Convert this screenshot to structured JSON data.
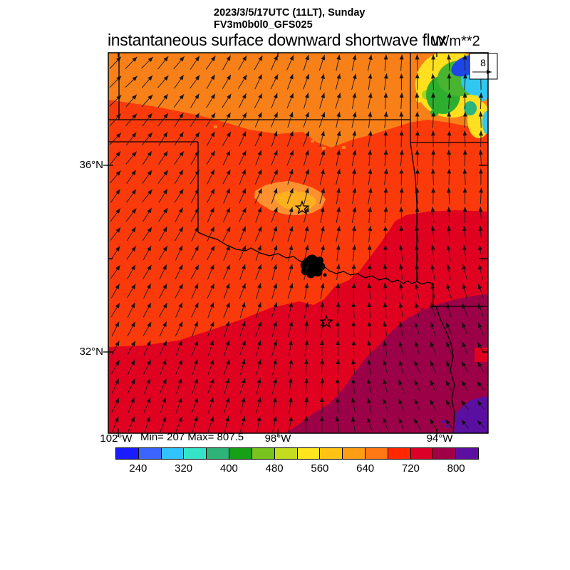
{
  "header": {
    "datetime": "2023/3/5/17UTC (11LT), Sunday",
    "model": "FV3m0b0l0_GFS025"
  },
  "title": {
    "text": "instantaneous surface downward shortwave flux",
    "units": "W/m**2"
  },
  "stats": {
    "minmax": "Min= 207 Max= 807.5"
  },
  "axes": {
    "lat": [
      "36°N",
      "32°N"
    ],
    "lon": [
      "102°W",
      "98°W",
      "94°W"
    ]
  },
  "wind_ref": {
    "label": "8"
  },
  "colorbar": {
    "labels": [
      "240",
      "320",
      "400",
      "480",
      "560",
      "640",
      "720",
      "800"
    ],
    "colors": [
      "#1b1bff",
      "#3c64ff",
      "#30c3ff",
      "#35e3c8",
      "#2eb478",
      "#16a016",
      "#78c31e",
      "#c3dc1e",
      "#ffe51e",
      "#ffc314",
      "#ff9e14",
      "#ff7814",
      "#ff2800",
      "#dc0028",
      "#a00046",
      "#5c0fa0"
    ]
  },
  "map_colors": {
    "orange_north": "#f88019",
    "redorange_mid": "#fb3a0c",
    "crimson_south": "#e00020",
    "magenta_se": "#9c0046",
    "purple_corner": "#5b0fa0",
    "patch_outer": "#fd9130",
    "patch_inner": "#ffb01e",
    "cloud_yellow": "#ffdf1e",
    "cloud_yellowgreen": "#a8d41e",
    "cloud_green": "#2eae2e",
    "cloud_green2": "#49b430",
    "cloud_teal": "#2ab47e",
    "cloud_cyan": "#30c8f0",
    "cloud_blue": "#1e46e6",
    "arrow": "#1c1c1c",
    "border": "#000000"
  },
  "chart_data": {
    "type": "heatmap",
    "title": "instantaneous surface downward shortwave flux",
    "units": "W/m**2",
    "valid_time": "2023/3/5/17UTC (11LT), Sunday",
    "model": "FV3m0b0l0_GFS025",
    "stat_min": 207,
    "stat_max": 807.5,
    "colorbar": {
      "boundaries": [
        200,
        240,
        280,
        320,
        360,
        400,
        440,
        480,
        520,
        560,
        600,
        640,
        680,
        720,
        760,
        800,
        840
      ],
      "tick_labels": [
        240,
        320,
        400,
        480,
        560,
        640,
        720,
        800
      ],
      "colors": [
        "#1b1bff",
        "#3c64ff",
        "#30c3ff",
        "#35e3c8",
        "#2eb478",
        "#16a016",
        "#78c31e",
        "#c3dc1e",
        "#ffe51e",
        "#ffc314",
        "#ff9e14",
        "#ff7814",
        "#ff2800",
        "#dc0028",
        "#a00046",
        "#5c0fa0"
      ]
    },
    "x_axis": {
      "label_type": "longitude",
      "tick_labels": [
        "102°W",
        "98°W",
        "94°W"
      ],
      "approx_range_deg_west": [
        102.3,
        92.7
      ]
    },
    "y_axis": {
      "label_type": "latitude",
      "tick_labels": [
        "36°N",
        "32°N"
      ],
      "approx_range_deg_north": [
        30.3,
        38.4
      ]
    },
    "wind_vectors": {
      "reference_value": 8,
      "general_flow": "southerly over most of domain, veering SSW in the west, NW-pointing weak vectors in the southeast"
    },
    "regions": [
      {
        "name": "north band (Kansas / far north)",
        "approx_flux": "640-680",
        "color": "#f88019"
      },
      {
        "name": "Oklahoma and Texas panhandle (red-orange)",
        "approx_flux": "680-720",
        "color": "#fb3a0c"
      },
      {
        "name": "north Texas / southern strip (red)",
        "approx_flux": "720-760",
        "color": "#e00020"
      },
      {
        "name": "southeast (dark magenta)",
        "approx_flux": "760-800",
        "color": "#9c0046"
      },
      {
        "name": "far southeast corner (purple)",
        "approx_flux": "800-840",
        "color": "#5b0fa0"
      },
      {
        "name": "cloud-reduced patch, northeast corner (yellow/green/cyan/blue)",
        "approx_flux": "220-540",
        "color": "#1e46e6"
      },
      {
        "name": "bright patch near central Oklahoma star",
        "approx_flux": "600-640",
        "color": "#ffb01e"
      }
    ],
    "markers": [
      {
        "type": "star",
        "location": "central Oklahoma"
      },
      {
        "type": "star",
        "location": "north Texas"
      },
      {
        "type": "lake",
        "location": "Lake Texoma on Red River"
      }
    ]
  }
}
